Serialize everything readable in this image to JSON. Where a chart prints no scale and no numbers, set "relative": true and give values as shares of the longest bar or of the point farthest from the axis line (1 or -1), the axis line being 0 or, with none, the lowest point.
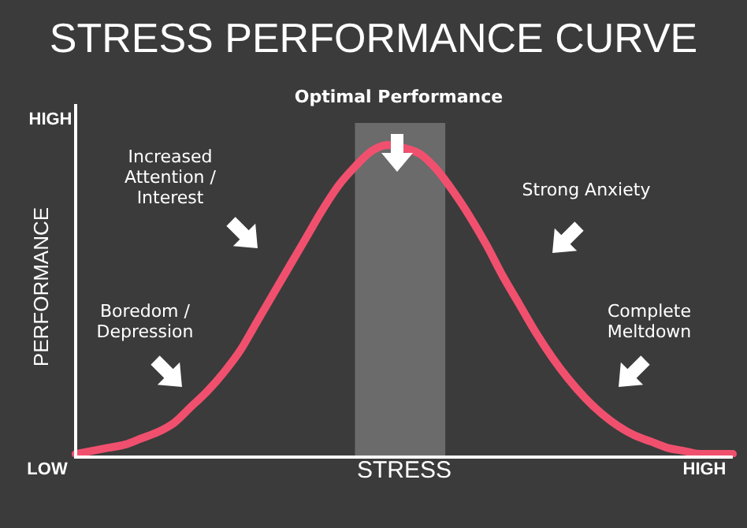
{
  "chart_data": {
    "type": "line",
    "title": "STRESS PERFORMANCE CURVE",
    "xlabel": "STRESS",
    "ylabel": "PERFORMANCE",
    "relative": true,
    "color": "#f0506e",
    "categories": [
      null,
      null,
      null,
      null,
      null,
      null,
      null,
      null,
      null,
      null,
      null,
      null,
      null,
      null,
      null,
      null,
      null,
      null,
      null,
      null,
      null,
      null,
      null,
      null,
      null,
      null,
      null,
      null,
      null,
      null,
      null,
      null,
      null,
      null,
      null,
      null,
      null,
      null,
      null,
      null,
      null
    ],
    "values": [
      0.01,
      0.02,
      0.03,
      0.04,
      0.06,
      0.08,
      0.11,
      0.16,
      0.21,
      0.27,
      0.34,
      0.43,
      0.52,
      0.61,
      0.7,
      0.79,
      0.87,
      0.93,
      0.98,
      1,
      0.99,
      0.97,
      0.92,
      0.85,
      0.77,
      0.68,
      0.58,
      0.49,
      0.4,
      0.32,
      0.25,
      0.19,
      0.14,
      0.1,
      0.07,
      0.05,
      0.03,
      0.02,
      0.01,
      0.01,
      0.01
    ],
    "annotations": [
      "HIGH",
      "LOW",
      "HIGH",
      "Increased Attention / Interest",
      "Strong Anxiety",
      "Boredom / Depression",
      "Complete Meltdown",
      "Optimal Performance"
    ],
    "legend": false
  }
}
